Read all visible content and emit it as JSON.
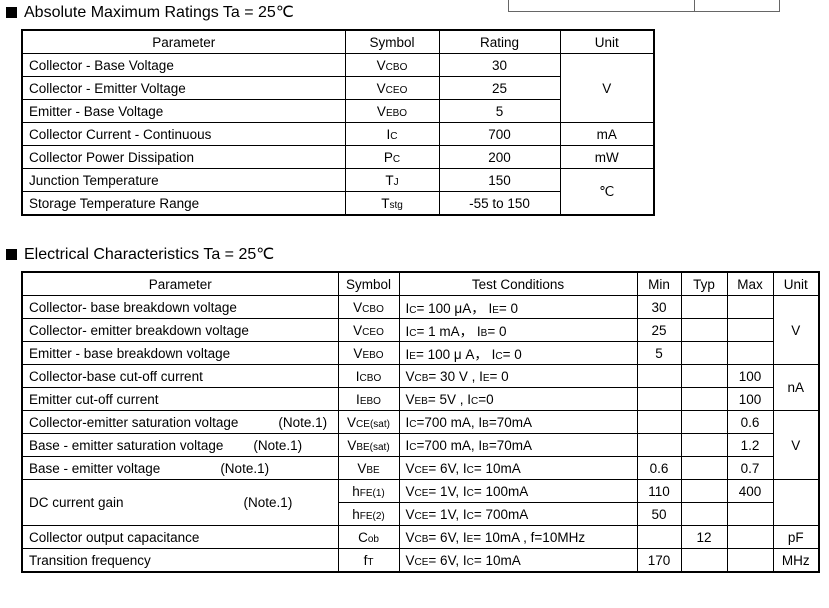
{
  "abs_max": {
    "title": "Absolute Maximum Ratings Ta = 25℃",
    "headers": [
      "Parameter",
      "Symbol",
      "Rating",
      "Unit"
    ],
    "rows": [
      {
        "param": "Collector - Base Voltage",
        "sym": "V{CBO}",
        "rating": "30",
        "unit": {
          "text": "V",
          "rowspan": 3
        }
      },
      {
        "param": "Collector - Emitter Voltage",
        "sym": "V{CEO}",
        "rating": "25"
      },
      {
        "param": "Emitter - Base Voltage",
        "sym": "V{EBO}",
        "rating": "5"
      },
      {
        "param": "Collector Current  - Continuous",
        "sym": "I{C}",
        "rating": "700",
        "unit": {
          "text": "mA",
          "rowspan": 1
        }
      },
      {
        "param": "Collector Power Dissipation",
        "sym": "P{C}",
        "rating": "200",
        "unit": {
          "text": "mW",
          "rowspan": 1
        }
      },
      {
        "param": "Junction Temperature",
        "sym": "T{J}",
        "rating": "150",
        "unit": {
          "text": "℃",
          "rowspan": 2
        }
      },
      {
        "param": "Storage Temperature Range",
        "sym": "T{stg}",
        "rating": "-55 to 150"
      }
    ]
  },
  "elec": {
    "title": "Electrical Characteristics Ta = 25℃",
    "headers": [
      "Parameter",
      "Symbol",
      "Test Conditions",
      "Min",
      "Typ",
      "Max",
      "Unit"
    ],
    "rows": [
      {
        "param": "Collector- base breakdown voltage",
        "sym": "V{CBO}",
        "cond": "I{C}= 100 μA，  I{E}= 0",
        "min": "30",
        "typ": "",
        "max": "",
        "unit": {
          "text": "V",
          "rowspan": 3
        }
      },
      {
        "param": "Collector- emitter breakdown voltage",
        "sym": "V{CEO}",
        "cond": "I{C}= 1 mA，  I{B}= 0",
        "min": "25",
        "typ": "",
        "max": ""
      },
      {
        "param": "Emitter - base breakdown voltage",
        "sym": "V{EBO}",
        "cond": "I{E}= 100 μ A，  I{C}= 0",
        "min": "5",
        "typ": "",
        "max": ""
      },
      {
        "param": "Collector-base cut-off current",
        "sym": "I{CBO}",
        "cond": "V{CB}= 30 V , I{E}= 0",
        "min": "",
        "typ": "",
        "max": "100",
        "unit": {
          "text": "nA",
          "rowspan": 2
        }
      },
      {
        "param": "Emitter cut-off current",
        "sym": "I{EBO}",
        "cond": "V{EB}= 5V , I{C}=0",
        "min": "",
        "typ": "",
        "max": "100"
      },
      {
        "param": "Collector-emitter saturation voltage",
        "note": "(Note.1)",
        "sym": "V{CE(sat)}",
        "cond": "I{C}=700 mA, I{B}=70mA",
        "min": "",
        "typ": "",
        "max": "0.6",
        "unit": {
          "text": "V",
          "rowspan": 3
        }
      },
      {
        "param": "Base - emitter saturation voltage",
        "note": "(Note.1)",
        "sym": "V{BE(sat)}",
        "cond": "I{C}=700 mA, I{B}=70mA",
        "min": "",
        "typ": "",
        "max": "1.2"
      },
      {
        "param": "Base - emitter voltage",
        "note": "(Note.1)",
        "sym": "V{BE}",
        "cond": "V{CE}= 6V, I{C}= 10mA",
        "min": "0.6",
        "typ": "",
        "max": "0.7"
      },
      {
        "param": "DC current gain",
        "note": "(Note.1)",
        "param_rowspan": 2,
        "sym": "h{FE(1)}",
        "cond": "V{CE}= 1V, I{C}= 100mA",
        "min": "110",
        "typ": "",
        "max": "400",
        "unit": {
          "text": "",
          "rowspan": 2
        }
      },
      {
        "sym": "h{FE(2)}",
        "cond": "V{CE}= 1V, I{C}= 700mA",
        "min": "50",
        "typ": "",
        "max": ""
      },
      {
        "param": "Collector output  capacitance",
        "sym": "C{ob}",
        "cond": "V{CB}= 6V, I{E}= 10mA , f=10MHz",
        "min": "",
        "typ": "12",
        "max": "",
        "unit": {
          "text": "pF",
          "rowspan": 1
        }
      },
      {
        "param": "Transition frequency",
        "sym": "f{T}",
        "cond": "V{CE}= 6V, I{C}= 10mA",
        "min": "170",
        "typ": "",
        "max": "",
        "unit": {
          "text": "MHz",
          "rowspan": 1
        }
      }
    ]
  }
}
